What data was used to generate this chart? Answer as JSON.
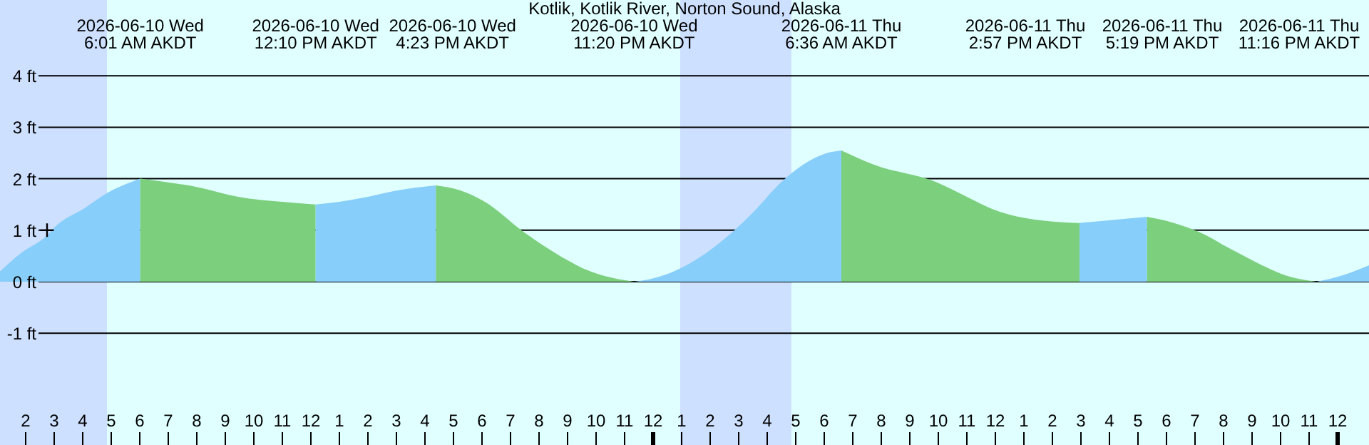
{
  "chart_data": {
    "type": "area",
    "title": "Kotlik, Kotlik River, Norton Sound, Alaska",
    "xlim": [
      "2026-06-10T01:06",
      "2026-06-12T01:06"
    ],
    "ylim": [
      -3.17,
      5.47
    ],
    "xticks": [
      {
        "value": "2026-06-10T02:00",
        "label": "2"
      },
      {
        "value": "2026-06-10T03:00",
        "label": "3"
      },
      {
        "value": "2026-06-10T04:00",
        "label": "4"
      },
      {
        "value": "2026-06-10T05:00",
        "label": "5"
      },
      {
        "value": "2026-06-10T06:00",
        "label": "6"
      },
      {
        "value": "2026-06-10T07:00",
        "label": "7"
      },
      {
        "value": "2026-06-10T08:00",
        "label": "8"
      },
      {
        "value": "2026-06-10T09:00",
        "label": "9"
      },
      {
        "value": "2026-06-10T10:00",
        "label": "10"
      },
      {
        "value": "2026-06-10T11:00",
        "label": "11"
      },
      {
        "value": "2026-06-10T12:00",
        "label": "12"
      },
      {
        "value": "2026-06-10T13:00",
        "label": "1"
      },
      {
        "value": "2026-06-10T14:00",
        "label": "2"
      },
      {
        "value": "2026-06-10T15:00",
        "label": "3"
      },
      {
        "value": "2026-06-10T16:00",
        "label": "4"
      },
      {
        "value": "2026-06-10T17:00",
        "label": "5"
      },
      {
        "value": "2026-06-10T18:00",
        "label": "6"
      },
      {
        "value": "2026-06-10T19:00",
        "label": "7"
      },
      {
        "value": "2026-06-10T20:00",
        "label": "8"
      },
      {
        "value": "2026-06-10T21:00",
        "label": "9"
      },
      {
        "value": "2026-06-10T22:00",
        "label": "10"
      },
      {
        "value": "2026-06-10T23:00",
        "label": "11"
      },
      {
        "value": "2026-06-11T00:00",
        "label": "12"
      },
      {
        "value": "2026-06-11T01:00",
        "label": "1"
      },
      {
        "value": "2026-06-11T02:00",
        "label": "2"
      },
      {
        "value": "2026-06-11T03:00",
        "label": "3"
      },
      {
        "value": "2026-06-11T04:00",
        "label": "4"
      },
      {
        "value": "2026-06-11T05:00",
        "label": "5"
      },
      {
        "value": "2026-06-11T06:00",
        "label": "6"
      },
      {
        "value": "2026-06-11T07:00",
        "label": "7"
      },
      {
        "value": "2026-06-11T08:00",
        "label": "8"
      },
      {
        "value": "2026-06-11T09:00",
        "label": "9"
      },
      {
        "value": "2026-06-11T10:00",
        "label": "10"
      },
      {
        "value": "2026-06-11T11:00",
        "label": "11"
      },
      {
        "value": "2026-06-11T12:00",
        "label": "12"
      },
      {
        "value": "2026-06-11T13:00",
        "label": "1"
      },
      {
        "value": "2026-06-11T14:00",
        "label": "2"
      },
      {
        "value": "2026-06-11T15:00",
        "label": "3"
      },
      {
        "value": "2026-06-11T16:00",
        "label": "4"
      },
      {
        "value": "2026-06-11T17:00",
        "label": "5"
      },
      {
        "value": "2026-06-11T18:00",
        "label": "6"
      },
      {
        "value": "2026-06-11T19:00",
        "label": "7"
      },
      {
        "value": "2026-06-11T20:00",
        "label": "8"
      },
      {
        "value": "2026-06-11T21:00",
        "label": "9"
      },
      {
        "value": "2026-06-11T22:00",
        "label": "10"
      },
      {
        "value": "2026-06-11T23:00",
        "label": "11"
      },
      {
        "value": "2026-06-12T00:00",
        "label": "12"
      }
    ],
    "yticks": [
      {
        "value": -1,
        "label": "-1 ft"
      },
      {
        "value": 0,
        "label": "0 ft"
      },
      {
        "value": 1,
        "label": "1 ft"
      },
      {
        "value": 2,
        "label": "2 ft"
      },
      {
        "value": 3,
        "label": "3 ft"
      },
      {
        "value": 4,
        "label": "4 ft"
      }
    ],
    "grid": "y",
    "bands": [
      {
        "axis": "x",
        "from": "2026-06-10T01:06",
        "to": "2026-06-10T04:51"
      },
      {
        "axis": "x",
        "from": "2026-06-11T00:57",
        "to": "2026-06-11T04:51"
      }
    ],
    "series": [
      {
        "color": "#87cefa",
        "x": [
          "2026-06-10T01:06",
          "2026-06-10T01:51",
          "2026-06-10T02:45",
          "2026-06-10T03:00",
          "2026-06-10T04:06",
          "2026-06-10T04:51",
          "2026-06-10T06:01"
        ],
        "values": [
          0.2,
          0.56,
          0.9,
          1.05,
          1.44,
          1.72,
          2.0
        ]
      },
      {
        "color": "#7ccf7c",
        "x": [
          "2026-06-10T06:01",
          "2026-06-10T07:00",
          "2026-06-10T08:00",
          "2026-06-10T09:27",
          "2026-06-10T11:00",
          "2026-06-10T12:10"
        ],
        "values": [
          2.0,
          1.93,
          1.84,
          1.65,
          1.55,
          1.5
        ]
      },
      {
        "color": "#87cefa",
        "x": [
          "2026-06-10T12:10",
          "2026-06-10T13:00",
          "2026-06-10T14:00",
          "2026-06-10T15:00",
          "2026-06-10T16:23"
        ],
        "values": [
          1.5,
          1.55,
          1.65,
          1.77,
          1.87
        ]
      },
      {
        "color": "#7ccf7c",
        "x": [
          "2026-06-10T16:23",
          "2026-06-10T17:12",
          "2026-06-10T18:06",
          "2026-06-10T19:27",
          "2026-06-10T20:48",
          "2026-06-10T21:48",
          "2026-06-10T23:20"
        ],
        "values": [
          1.87,
          1.78,
          1.55,
          0.97,
          0.48,
          0.2,
          0.0
        ]
      },
      {
        "color": "#87cefa",
        "x": [
          "2026-06-10T23:20",
          "2026-06-11T00:06",
          "2026-06-11T01:06",
          "2026-06-11T02:45",
          "2026-06-11T03:36",
          "2026-06-11T04:27",
          "2026-06-11T05:12",
          "2026-06-11T06:06",
          "2026-06-11T06:36"
        ],
        "values": [
          0.0,
          0.08,
          0.3,
          0.95,
          1.4,
          1.91,
          2.25,
          2.5,
          2.55
        ]
      },
      {
        "color": "#7ccf7c",
        "x": [
          "2026-06-11T06:36",
          "2026-06-11T07:45",
          "2026-06-11T09:57",
          "2026-06-11T11:00",
          "2026-06-11T11:57",
          "2026-06-11T13:36",
          "2026-06-11T14:57"
        ],
        "values": [
          2.55,
          2.27,
          1.93,
          1.65,
          1.4,
          1.19,
          1.14
        ]
      },
      {
        "color": "#87cefa",
        "x": [
          "2026-06-11T14:57",
          "2026-06-11T16:06",
          "2026-06-11T17:19"
        ],
        "values": [
          1.14,
          1.2,
          1.26
        ]
      },
      {
        "color": "#7ccf7c",
        "x": [
          "2026-06-11T17:19",
          "2026-06-11T18:12",
          "2026-06-11T19:15",
          "2026-06-11T20:12",
          "2026-06-11T21:06",
          "2026-06-11T22:12",
          "2026-06-11T23:16"
        ],
        "values": [
          1.26,
          1.15,
          0.94,
          0.65,
          0.39,
          0.12,
          0.0
        ]
      },
      {
        "color": "#87cefa",
        "x": [
          "2026-06-11T23:16",
          "2026-06-12T00:12",
          "2026-06-12T01:06"
        ],
        "values": [
          0.0,
          0.13,
          0.32
        ]
      },
      {
        "type": "scatter",
        "marker": "cross",
        "color": "#000000",
        "x": [
          "2026-06-10T02:45"
        ],
        "values": [
          1.0
        ]
      }
    ],
    "annotations": [
      "2026-06-10 Wed\n6:01 AM AKDT",
      "2026-06-10 Wed\n12:10 PM AKDT",
      "2026-06-10 Wed\n4:23 PM AKDT",
      "2026-06-10 Wed\n11:20 PM AKDT",
      "2026-06-11 Thu\n6:36 AM AKDT",
      "2026-06-11 Thu\n2:57 PM AKDT",
      "2026-06-11 Thu\n5:19 PM AKDT",
      "2026-06-11 Thu\n11:16 PM AKDT"
    ]
  }
}
